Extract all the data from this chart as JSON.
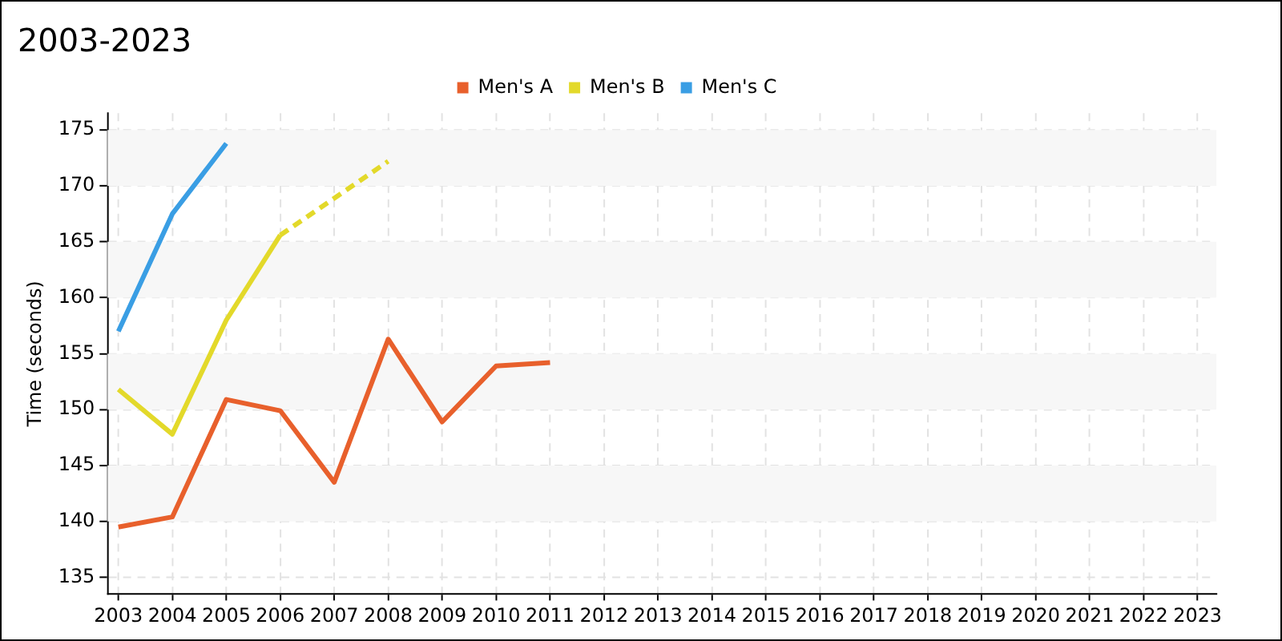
{
  "chart_data": {
    "type": "line",
    "title": "2003-2023",
    "ylabel": "Time (seconds)",
    "xlim": [
      2002.8,
      2023.35
    ],
    "xticks": [
      2003,
      2004,
      2005,
      2006,
      2007,
      2008,
      2009,
      2010,
      2011,
      2012,
      2013,
      2014,
      2015,
      2016,
      2017,
      2018,
      2019,
      2020,
      2021,
      2022,
      2023
    ],
    "ylim": [
      133.5,
      176.5
    ],
    "yticks": [
      135,
      140,
      145,
      150,
      155,
      160,
      165,
      170,
      175
    ],
    "grid": true,
    "legend": "top",
    "marker": "none",
    "bands": [
      {
        "axis": "y",
        "from": 140,
        "to": 145,
        "color": "#f7f7f7"
      },
      {
        "axis": "y",
        "from": 150,
        "to": 155,
        "color": "#f7f7f7"
      },
      {
        "axis": "y",
        "from": 160,
        "to": 165,
        "color": "#f7f7f7"
      },
      {
        "axis": "y",
        "from": 170,
        "to": 175,
        "color": "#f7f7f7"
      }
    ],
    "series": [
      {
        "name": "Men's A",
        "color": "#e8602c",
        "x": [
          2003,
          2004,
          2005,
          2006,
          2007,
          2008,
          2009,
          2010,
          2011
        ],
        "values": [
          139.5,
          140.4,
          150.9,
          149.9,
          143.5,
          156.3,
          148.9,
          153.9,
          154.2
        ]
      },
      {
        "name": "Men's B",
        "color": "#e3d92a",
        "x": [
          2003,
          2004,
          2005,
          2006
        ],
        "values": [
          151.8,
          147.8,
          158,
          165.6
        ]
      },
      {
        "color": "#e3d92a",
        "line_style": "dashed",
        "x": [
          2006,
          2008
        ],
        "values": [
          165.6,
          172.2
        ]
      },
      {
        "name": "Men's C",
        "color": "#3a9ee4",
        "x": [
          2003,
          2004,
          2005
        ],
        "values": [
          157,
          167.5,
          173.8
        ]
      }
    ]
  }
}
